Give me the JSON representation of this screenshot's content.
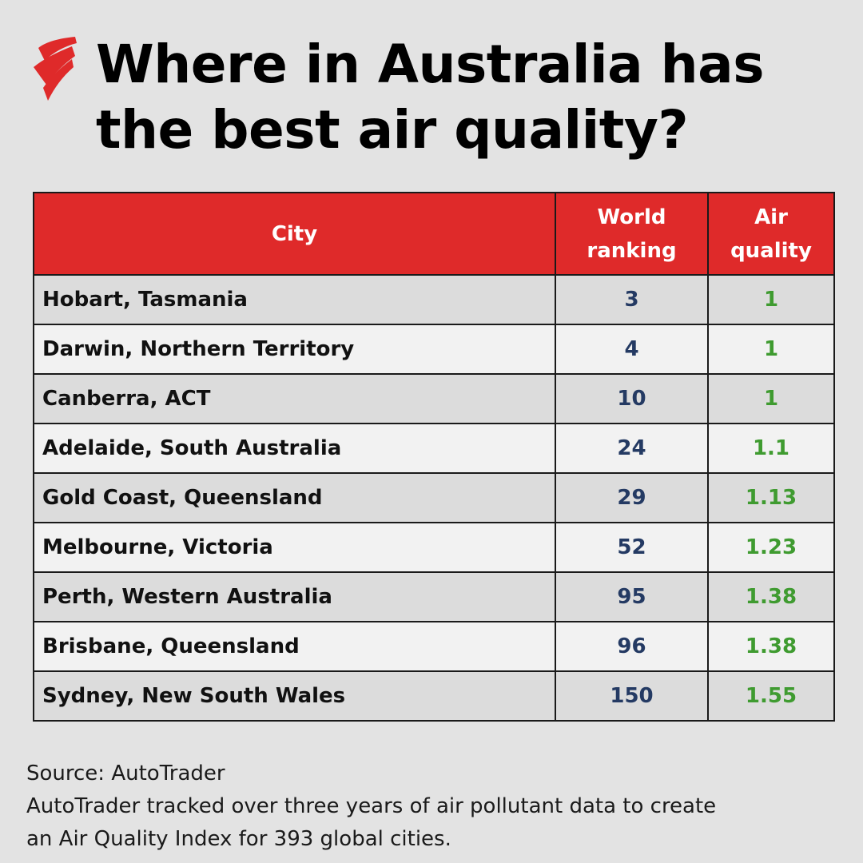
{
  "logo": {
    "icon": "sbs-logo-icon",
    "color": "#df2a2a"
  },
  "title_lines": [
    "Where in Australia has",
    "the best air quality?"
  ],
  "colors": {
    "header_bg": "#df2a2a",
    "rank_text": "#243a63",
    "quality_text": "#3f9b30"
  },
  "chart_data": {
    "type": "table",
    "columns": [
      "City",
      "World\nranking",
      "Air\nquality"
    ],
    "rows": [
      {
        "city": "Hobart, Tasmania",
        "ranking": "3",
        "air_quality": "1"
      },
      {
        "city": "Darwin, Northern Territory",
        "ranking": "4",
        "air_quality": "1"
      },
      {
        "city": "Canberra, ACT",
        "ranking": "10",
        "air_quality": "1"
      },
      {
        "city": "Adelaide, South Australia",
        "ranking": "24",
        "air_quality": "1.1"
      },
      {
        "city": "Gold Coast, Queensland",
        "ranking": "29",
        "air_quality": "1.13"
      },
      {
        "city": "Melbourne, Victoria",
        "ranking": "52",
        "air_quality": "1.23"
      },
      {
        "city": "Perth, Western Australia",
        "ranking": "95",
        "air_quality": "1.38"
      },
      {
        "city": "Brisbane, Queensland",
        "ranking": "96",
        "air_quality": "1.38"
      },
      {
        "city": "Sydney, New South Wales",
        "ranking": "150",
        "air_quality": "1.55"
      }
    ]
  },
  "notes": [
    "Source: AutoTrader",
    "AutoTrader tracked over three years of air pollutant data to create",
    "an Air Quality Index for 393 global cities."
  ]
}
